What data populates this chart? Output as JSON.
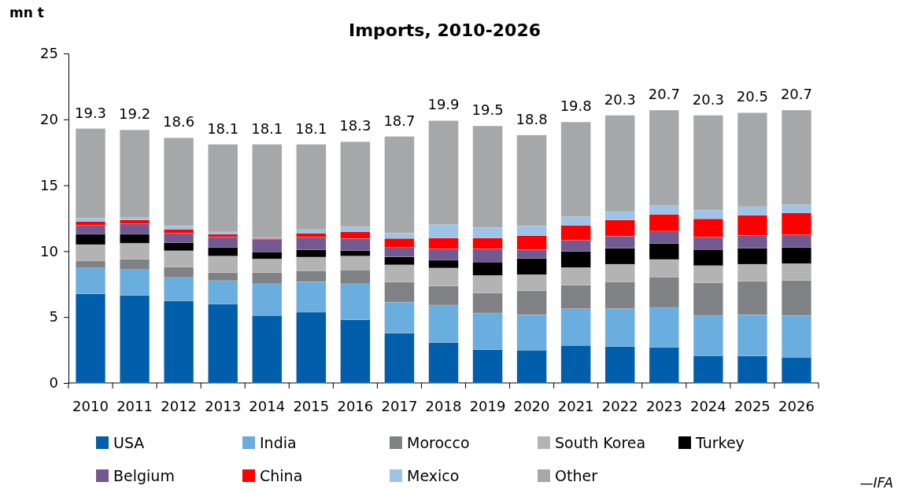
{
  "chart_data": {
    "type": "bar",
    "title": "Imports, 2010-2026",
    "ylabel": "mn t",
    "stacked": true,
    "legend": "bottom",
    "ylim": [
      0,
      25
    ],
    "yticks": [
      0,
      5,
      10,
      15,
      20,
      25
    ],
    "categories": [
      "2010",
      "2011",
      "2012",
      "2013",
      "2014",
      "2015",
      "2016",
      "2017",
      "2018",
      "2019",
      "2020",
      "2021",
      "2022",
      "2023",
      "2024",
      "2025",
      "2026"
    ],
    "series": [
      {
        "name": "USA",
        "color": "#005eaa",
        "values": [
          6.75,
          6.63,
          6.21,
          5.97,
          5.12,
          5.37,
          4.79,
          3.78,
          3.06,
          2.53,
          2.49,
          2.85,
          2.75,
          2.69,
          2.07,
          2.05,
          1.95
        ]
      },
      {
        "name": "India",
        "color": "#6aaddf",
        "values": [
          1.97,
          1.97,
          1.79,
          1.79,
          2.4,
          2.31,
          2.73,
          2.35,
          2.85,
          2.78,
          2.69,
          2.78,
          2.9,
          3.04,
          3.06,
          3.13,
          3.17
        ]
      },
      {
        "name": "Morocco",
        "color": "#808184",
        "values": [
          0.53,
          0.79,
          0.79,
          0.62,
          0.86,
          0.84,
          1.06,
          1.53,
          1.45,
          1.51,
          1.82,
          1.79,
          2.03,
          2.31,
          2.47,
          2.54,
          2.66
        ]
      },
      {
        "name": "South Korea",
        "color": "#b3b3b3",
        "values": [
          1.25,
          1.21,
          1.24,
          1.25,
          1.03,
          1.03,
          1.05,
          1.3,
          1.36,
          1.34,
          1.22,
          1.34,
          1.33,
          1.33,
          1.3,
          1.29,
          1.28
        ]
      },
      {
        "name": "Turkey",
        "color": "#000000",
        "values": [
          0.78,
          0.68,
          0.6,
          0.64,
          0.54,
          0.56,
          0.42,
          0.61,
          0.59,
          1.02,
          1.23,
          1.23,
          1.22,
          1.22,
          1.23,
          1.22,
          1.23
        ]
      },
      {
        "name": "Belgium",
        "color": "#72598f",
        "values": [
          0.68,
          0.8,
          0.73,
          0.82,
          0.93,
          0.95,
          0.92,
          0.7,
          0.86,
          0.99,
          0.68,
          0.83,
          0.92,
          0.93,
          0.93,
          0.98,
          0.95
        ]
      },
      {
        "name": "China",
        "color": "#ff0000",
        "values": [
          0.28,
          0.28,
          0.28,
          0.19,
          0.09,
          0.3,
          0.49,
          0.7,
          0.83,
          0.82,
          1.05,
          1.14,
          1.21,
          1.27,
          1.4,
          1.51,
          1.66
        ]
      },
      {
        "name": "Mexico",
        "color": "#9dc3e6",
        "values": [
          0.28,
          0.18,
          0.28,
          0.18,
          0.06,
          0.28,
          0.4,
          0.41,
          1.02,
          0.81,
          0.74,
          0.66,
          0.65,
          0.66,
          0.66,
          0.65,
          0.63
        ]
      },
      {
        "name": "Other",
        "color": "#a6a7a9",
        "values": [
          6.78,
          6.66,
          6.68,
          6.64,
          7.07,
          6.46,
          6.44,
          7.32,
          7.88,
          7.7,
          6.88,
          7.18,
          7.29,
          7.25,
          7.18,
          7.13,
          7.17
        ]
      }
    ],
    "totals": [
      "19.3",
      "19.2",
      "18.6",
      "18.1",
      "18.1",
      "18.1",
      "18.3",
      "18.7",
      "19.9",
      "19.5",
      "18.8",
      "19.8",
      "20.3",
      "20.7",
      "20.3",
      "20.5",
      "20.7"
    ],
    "annotations": [
      "—IFA"
    ]
  }
}
